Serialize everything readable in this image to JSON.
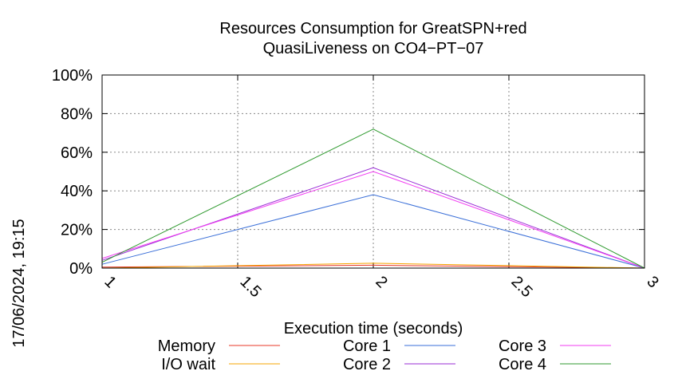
{
  "chart_data": {
    "type": "line",
    "title_line1": "Resources Consumption for GreatSPN+red",
    "title_line2": "QuasiLiveness on CO4−PT−07",
    "xlabel": "Execution time (seconds)",
    "ylabel": "",
    "timestamp": "17/06/2024, 19:15",
    "xlim": [
      1,
      3
    ],
    "ylim": [
      0,
      100
    ],
    "x_ticks": [
      {
        "value": 1,
        "label": "1"
      },
      {
        "value": 1.5,
        "label": "1.5"
      },
      {
        "value": 2,
        "label": "2"
      },
      {
        "value": 2.5,
        "label": "2.5"
      },
      {
        "value": 3,
        "label": "3"
      }
    ],
    "y_ticks": [
      {
        "value": 0,
        "label": "0%"
      },
      {
        "value": 20,
        "label": "20%"
      },
      {
        "value": 40,
        "label": "40%"
      },
      {
        "value": 60,
        "label": "60%"
      },
      {
        "value": 80,
        "label": "80%"
      },
      {
        "value": 100,
        "label": "100%"
      }
    ],
    "grid": true,
    "legend_position": "bottom",
    "series": [
      {
        "name": "Memory",
        "color": "#e8382a",
        "x": [
          1,
          2,
          3
        ],
        "y": [
          0.5,
          1.5,
          0
        ]
      },
      {
        "name": "I/O wait",
        "color": "#f5a500",
        "x": [
          1,
          2,
          3
        ],
        "y": [
          0,
          2.5,
          0
        ]
      },
      {
        "name": "Core 1",
        "color": "#3a6fd8",
        "x": [
          1,
          2,
          3
        ],
        "y": [
          2,
          38,
          0
        ]
      },
      {
        "name": "Core 2",
        "color": "#9a2ed6",
        "x": [
          1,
          2,
          3
        ],
        "y": [
          4,
          52,
          0
        ]
      },
      {
        "name": "Core 3",
        "color": "#f23cf2",
        "x": [
          1,
          2,
          3
        ],
        "y": [
          5,
          50,
          0
        ]
      },
      {
        "name": "Core 4",
        "color": "#2f9a2f",
        "x": [
          1,
          2,
          3
        ],
        "y": [
          3,
          72,
          0
        ]
      }
    ]
  }
}
